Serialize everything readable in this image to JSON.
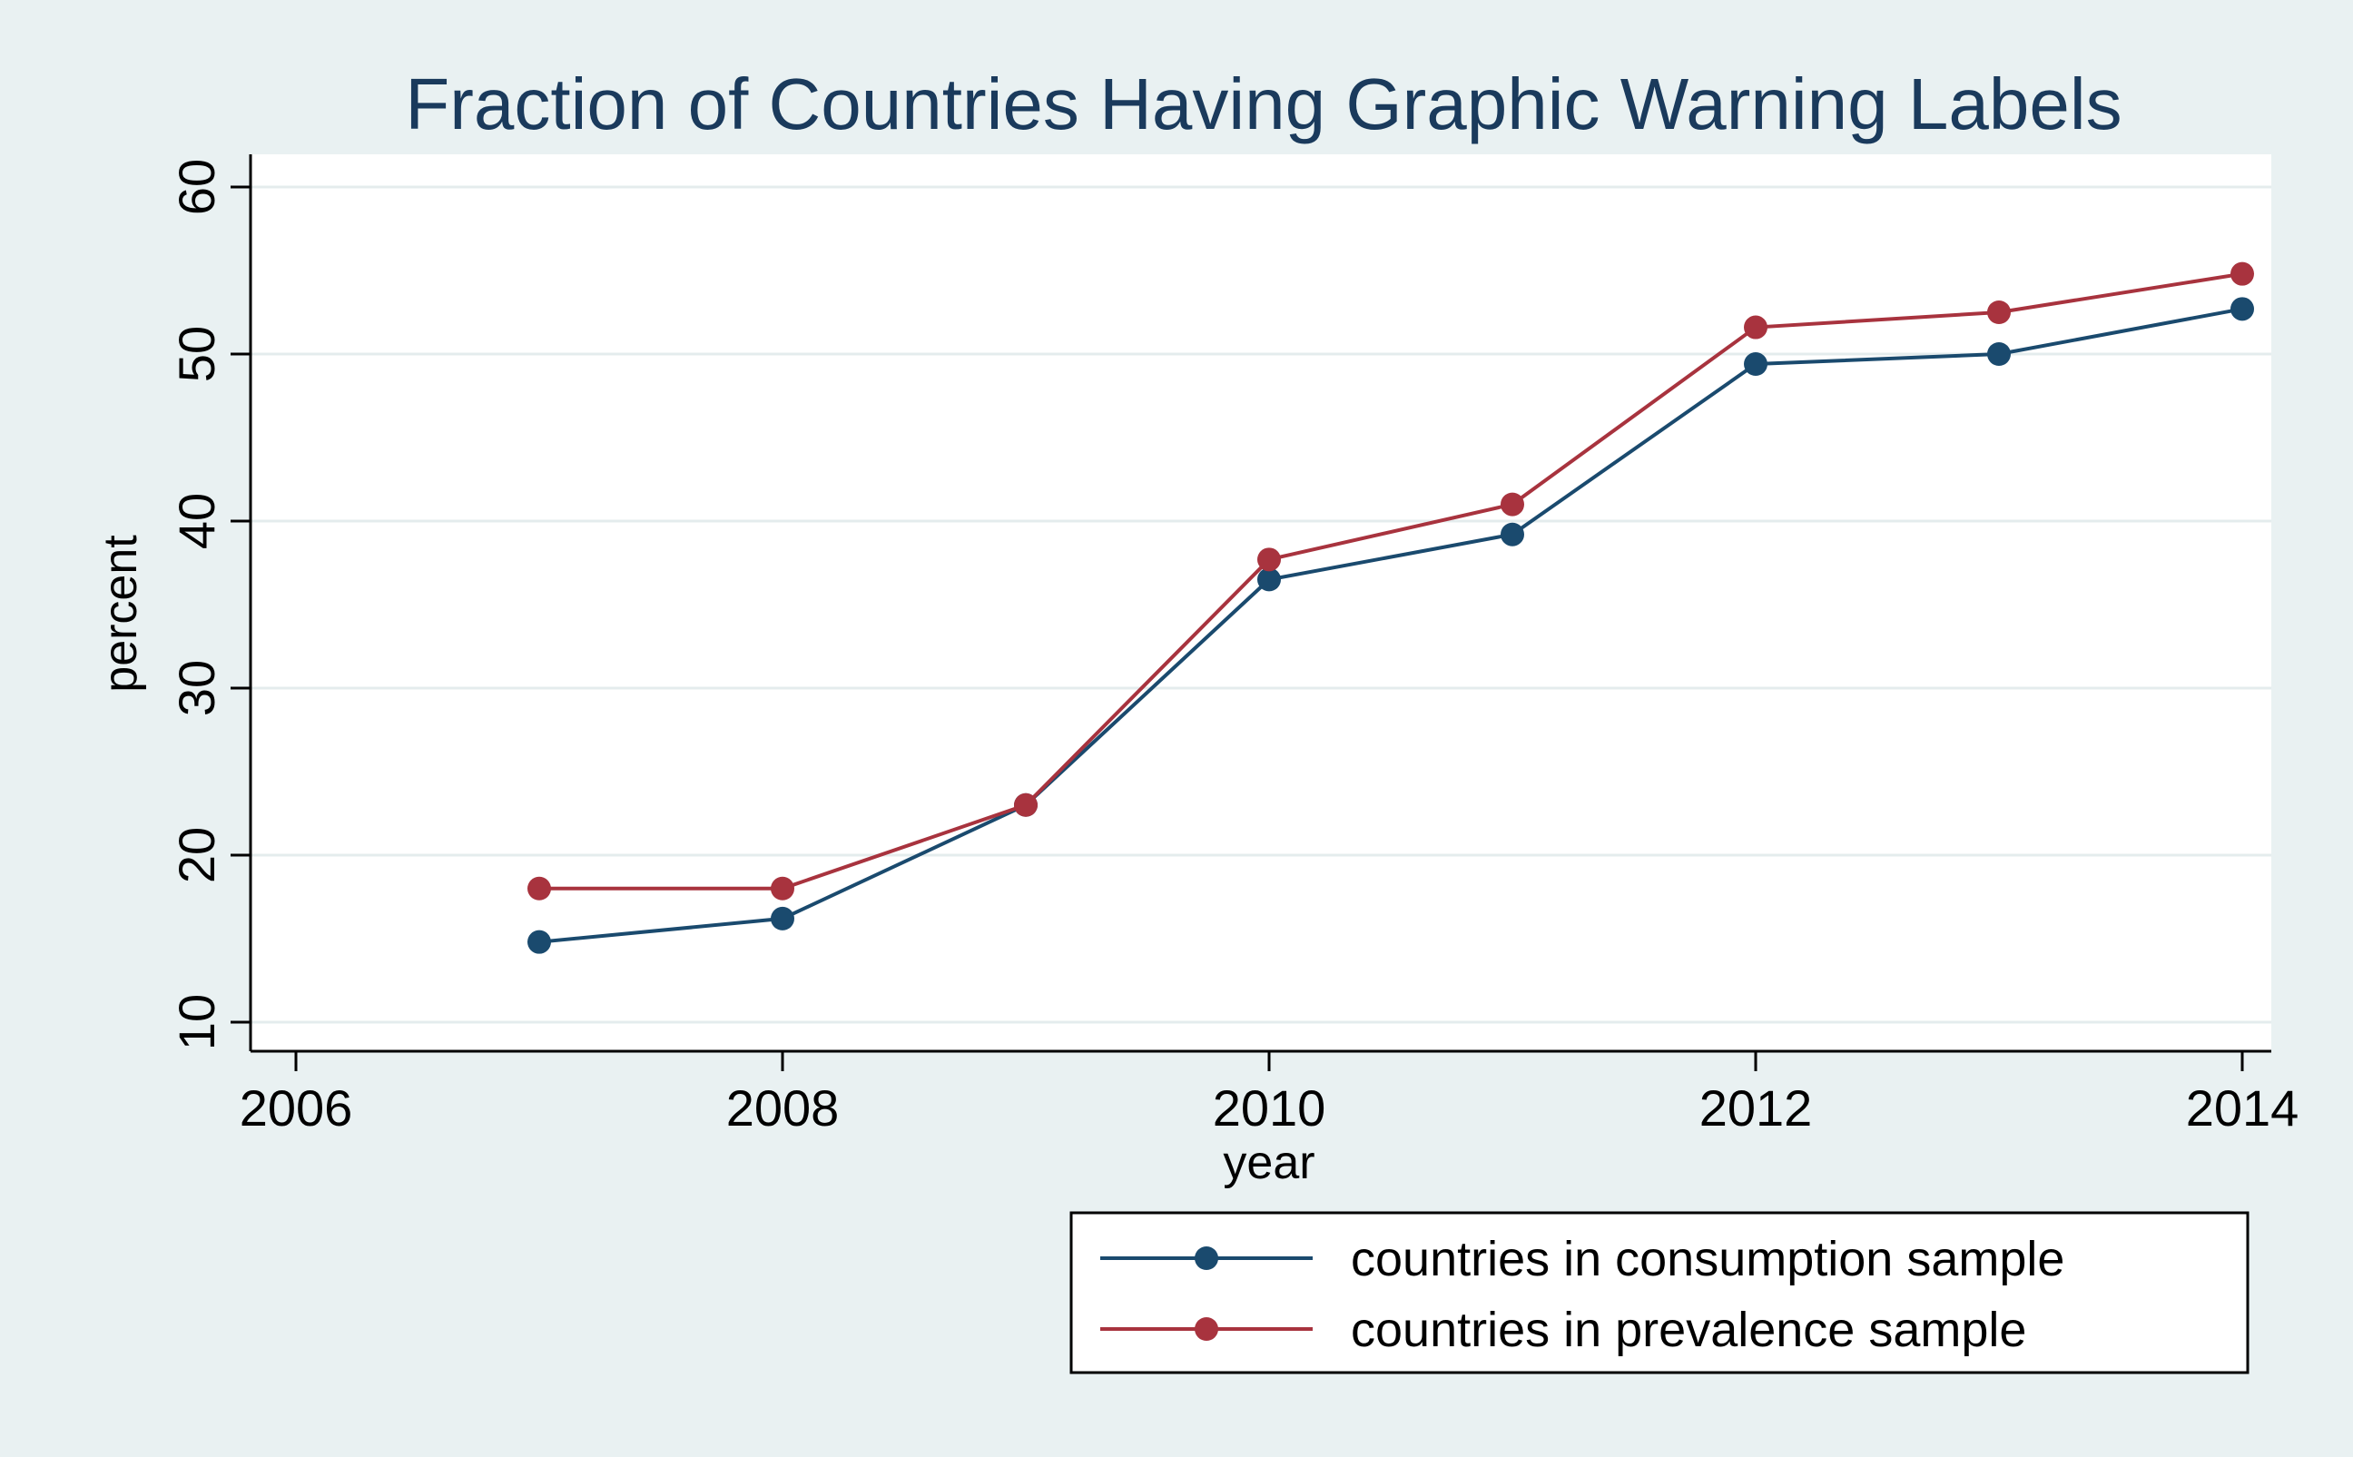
{
  "chart_data": {
    "type": "line",
    "title": "Fraction of Countries Having Graphic Warning Labels",
    "xlabel": "year",
    "ylabel": "percent",
    "x": [
      2007,
      2008,
      2009,
      2010,
      2011,
      2012,
      2013,
      2014
    ],
    "xlim": [
      2006,
      2014
    ],
    "ylim": [
      8,
      62
    ],
    "xticks": [
      2006,
      2008,
      2010,
      2012,
      2014
    ],
    "yticks": [
      10,
      20,
      30,
      40,
      50,
      60
    ],
    "grid": "horizontal",
    "legend_position": "bottom-right",
    "series": [
      {
        "name": "countries in consumption sample",
        "color": "#1a4a6e",
        "values": [
          14.8,
          16.2,
          23.0,
          36.5,
          39.2,
          49.4,
          50.0,
          52.7
        ]
      },
      {
        "name": "countries in prevalence sample",
        "color": "#a8333e",
        "values": [
          18.0,
          18.0,
          23.0,
          37.7,
          41.0,
          51.6,
          52.5,
          54.8
        ]
      }
    ]
  },
  "colors": {
    "outer_background": "#e9f1f2",
    "plot_background": "#ffffff",
    "gridline": "#e4eced",
    "title": "#1a3a5c"
  }
}
